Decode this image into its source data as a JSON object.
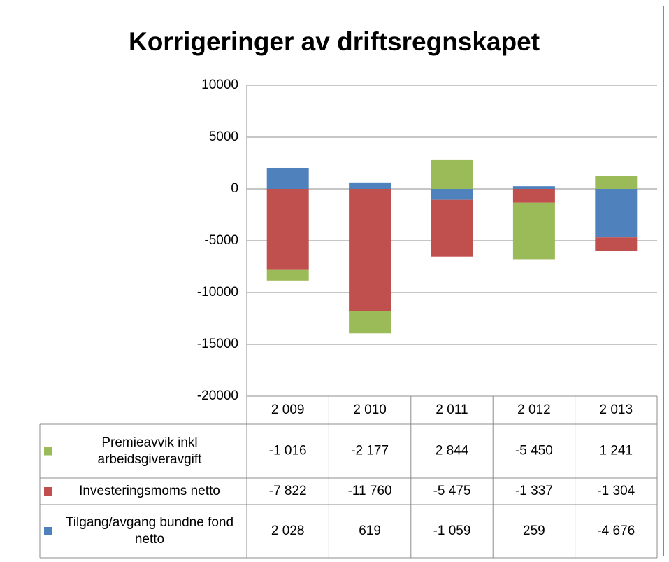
{
  "chart_data": {
    "type": "bar",
    "stacked": true,
    "title": "Korrigeringer av driftsregnskapet",
    "categories": [
      "2 009",
      "2 010",
      "2 011",
      "2 012",
      "2 013"
    ],
    "series": [
      {
        "name": "Premieavvik inkl arbeidsgiveravgift",
        "color": "#9bbb59",
        "values": [
          -1016,
          -2177,
          2844,
          -5450,
          1241
        ],
        "value_labels": [
          "-1 016",
          "-2 177",
          "2 844",
          "-5 450",
          "1 241"
        ]
      },
      {
        "name": "Investeringsmoms netto",
        "color": "#c0504d",
        "values": [
          -7822,
          -11760,
          -5475,
          -1337,
          -1304
        ],
        "value_labels": [
          "-7 822",
          "-11 760",
          "-5 475",
          "-1 337",
          "-1 304"
        ]
      },
      {
        "name": "Tilgang/avgang bundne fond netto",
        "color": "#4f81bd",
        "values": [
          2028,
          619,
          -1059,
          259,
          -4676
        ],
        "value_labels": [
          "2 028",
          "619",
          "-1 059",
          "259",
          "-4 676"
        ]
      }
    ],
    "ylim": [
      -20000,
      10000
    ],
    "yticks": [
      -20000,
      -15000,
      -10000,
      -5000,
      0,
      5000,
      10000
    ],
    "grid": true
  }
}
